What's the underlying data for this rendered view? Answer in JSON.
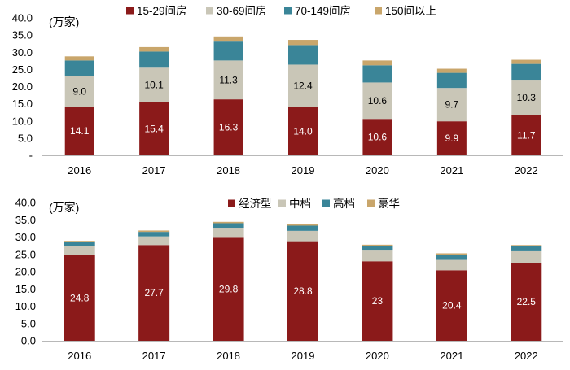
{
  "chart_data": [
    {
      "type": "bar",
      "stacked": true,
      "unit_label": "(万家)",
      "categories": [
        "2016",
        "2017",
        "2018",
        "2019",
        "2020",
        "2021",
        "2022"
      ],
      "ylim": [
        0,
        40
      ],
      "yticks": [
        "-",
        "5.0",
        "10.0",
        "15.0",
        "20.0",
        "25.0",
        "30.0",
        "35.0",
        "40.0"
      ],
      "legend_position": "top",
      "series": [
        {
          "name": "15-29间房",
          "color": "#8B1A1A",
          "label_color": "#ffffff",
          "show_labels": true,
          "values": [
            14.1,
            15.4,
            16.3,
            14.0,
            10.6,
            9.9,
            11.7
          ]
        },
        {
          "name": "30-69间房",
          "color": "#C9C6B7",
          "label_color": "#000000",
          "show_labels": true,
          "values": [
            9.0,
            10.1,
            11.3,
            12.4,
            10.6,
            9.7,
            10.3
          ]
        },
        {
          "name": "70-149间房",
          "color": "#3A8598",
          "label_color": "#ffffff",
          "show_labels": false,
          "values": [
            4.5,
            4.7,
            5.5,
            5.7,
            5.0,
            4.4,
            4.6
          ]
        },
        {
          "name": "150间以上",
          "color": "#C9A66B",
          "label_color": "#000000",
          "show_labels": false,
          "values": [
            1.2,
            1.3,
            1.5,
            1.5,
            1.4,
            1.2,
            1.2
          ]
        }
      ]
    },
    {
      "type": "bar",
      "stacked": true,
      "unit_label": "(万家)",
      "categories": [
        "2016",
        "2017",
        "2018",
        "2019",
        "2020",
        "2021",
        "2022"
      ],
      "ylim": [
        0,
        40
      ],
      "yticks": [
        "0.0",
        "5.0",
        "10.0",
        "15.0",
        "20.0",
        "25.0",
        "30.0",
        "35.0",
        "40.0"
      ],
      "legend_position": "top",
      "series": [
        {
          "name": "经济型",
          "color": "#8B1A1A",
          "label_color": "#ffffff",
          "show_labels": true,
          "value_labels": [
            "24.8",
            "27.7",
            "29.8",
            "28.8",
            "23",
            "20.4",
            "22.5"
          ],
          "values": [
            24.8,
            27.7,
            29.8,
            28.8,
            23.0,
            20.4,
            22.5
          ]
        },
        {
          "name": "中档",
          "color": "#C9C6B7",
          "label_color": "#000000",
          "show_labels": false,
          "values": [
            2.5,
            2.5,
            2.9,
            3.0,
            3.1,
            3.0,
            3.4
          ]
        },
        {
          "name": "高档",
          "color": "#3A8598",
          "label_color": "#ffffff",
          "show_labels": false,
          "values": [
            1.2,
            1.3,
            1.3,
            1.5,
            1.3,
            1.5,
            1.4
          ]
        },
        {
          "name": "豪华",
          "color": "#C9A66B",
          "label_color": "#000000",
          "show_labels": false,
          "values": [
            0.4,
            0.4,
            0.4,
            0.4,
            0.4,
            0.4,
            0.4
          ]
        }
      ]
    }
  ]
}
